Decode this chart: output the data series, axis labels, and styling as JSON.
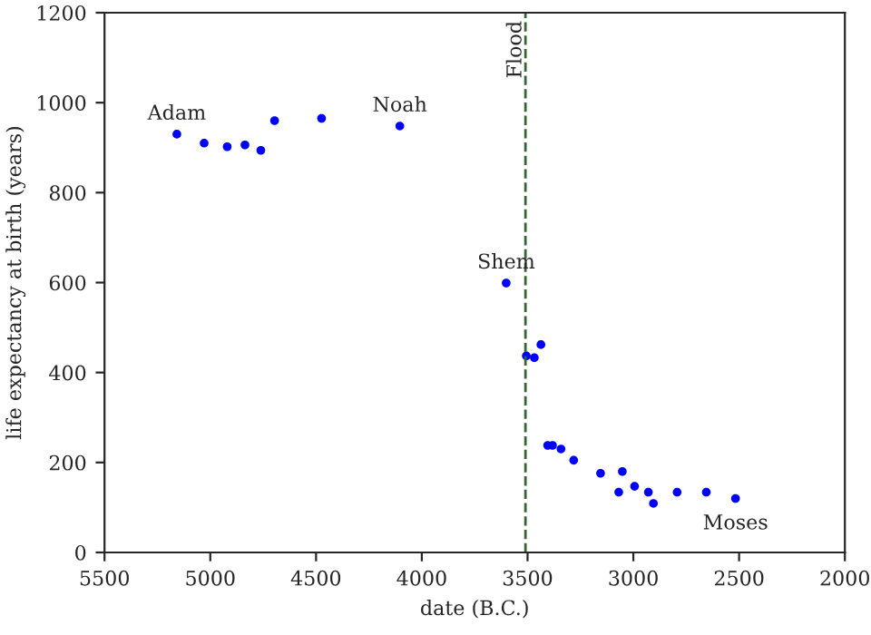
{
  "chart_data": {
    "type": "scatter",
    "xlabel": "date (B.C.)",
    "ylabel": "life expectancy at birth (years)",
    "x": [
      5158,
      5029,
      4920,
      4836,
      4761,
      4696,
      4474,
      4104,
      3601,
      3506,
      3468,
      3437,
      3405,
      3382,
      3342,
      3282,
      3155,
      3052,
      3069,
      2994,
      2929,
      2905,
      2793,
      2655,
      2517
    ],
    "series": [
      {
        "color": "#0000ff",
        "values": [
          930,
          910,
          902,
          906,
          894,
          960,
          965,
          948,
          599,
          437,
          433,
          462,
          238,
          238,
          230,
          205,
          176,
          180,
          134,
          147,
          134,
          109,
          134,
          134,
          120
        ]
      }
    ],
    "xlim": [
      5500,
      2000
    ],
    "xticks": [
      5500,
      5000,
      4500,
      4000,
      3500,
      3000,
      2500,
      2000
    ],
    "ylim": [
      0,
      1200
    ],
    "yticks": [
      0,
      200,
      400,
      600,
      800,
      1000,
      1200
    ],
    "ref_lines": [
      {
        "axis": "x",
        "value": 3510,
        "label": "Flood",
        "color": "#336633",
        "line_style": "dashed"
      }
    ],
    "annotations": [
      {
        "text": "Adam",
        "x": 5158,
        "y": 930
      },
      {
        "text": "Noah",
        "x": 4104,
        "y": 948
      },
      {
        "text": "Shem",
        "x": 3601,
        "y": 599
      },
      {
        "text": "Moses",
        "x": 2517,
        "y": 120
      }
    ],
    "marker": "circle",
    "grid": false
  }
}
